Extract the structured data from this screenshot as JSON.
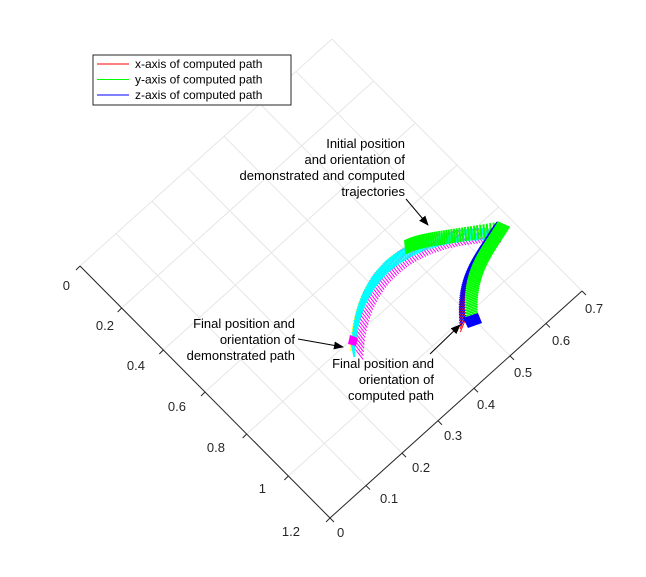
{
  "chart_data": {
    "type": "line",
    "view": "3d",
    "legend": {
      "placement": "top-left",
      "entries": [
        {
          "name": "x-axis of computed path",
          "color": "#ff0000"
        },
        {
          "name": "y-axis of computed path",
          "color": "#00ff00"
        },
        {
          "name": "z-axis of computed path",
          "color": "#0000ff"
        }
      ]
    },
    "grid": true,
    "axes": {
      "a": {
        "ticks": [
          "0",
          "0.1",
          "0.2",
          "0.3",
          "0.4",
          "0.5",
          "0.6",
          "0.7"
        ],
        "range": [
          0,
          0.7
        ]
      },
      "b": {
        "ticks": [
          "0",
          "0.2",
          "0.4",
          "0.6",
          "0.8",
          "1",
          "1.2"
        ],
        "range": [
          0,
          1.2
        ]
      }
    },
    "series": [
      {
        "name": "x-axis of computed path",
        "color": "#ff0000"
      },
      {
        "name": "y-axis of computed path",
        "color": "#00ff00"
      },
      {
        "name": "z-axis of computed path",
        "color": "#0000ff"
      },
      {
        "color": "#00ffff"
      },
      {
        "color": "#ff00ff"
      },
      {
        "color": "#ffff00"
      }
    ],
    "annotations": [
      {
        "id": "initial",
        "lines": [
          "Initial position",
          "and orientation of",
          "demonstrated and computed",
          "trajectories"
        ]
      },
      {
        "id": "final-demo",
        "lines": [
          "Final position and",
          "orientation of",
          "demonstrated path"
        ]
      },
      {
        "id": "final-comp",
        "lines": [
          "Final position and",
          "orientation of",
          "computed path"
        ]
      }
    ]
  }
}
